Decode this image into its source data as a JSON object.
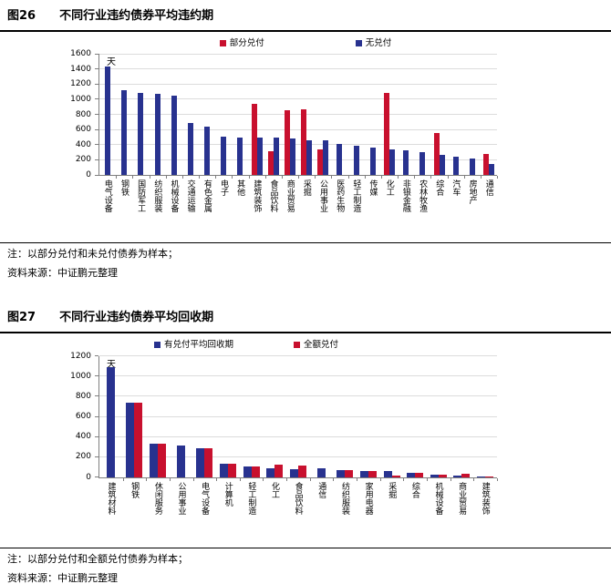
{
  "colors": {
    "series_blue": "#28328F",
    "series_red": "#C8102E",
    "gridline": "#DCDCDC",
    "axis": "#7F7F7F",
    "rule": "#000000"
  },
  "figures": [
    {
      "fig_label": "图26",
      "title": "不同行业违约债券平均违约期",
      "note": "注：以部分兑付和未兑付债券为样本；",
      "source": "资料来源：中证鹏元整理"
    },
    {
      "fig_label": "图27",
      "title": "不同行业违约债券平均回收期",
      "note": "注：以部分兑付和全额兑付债券为样本；",
      "source": "资料来源：中证鹏元整理"
    }
  ],
  "chart_data": [
    {
      "type": "bar",
      "title": "不同行业违约债券平均违约期",
      "unit_label": "天",
      "ylim": [
        0,
        1600
      ],
      "ytick_step": 200,
      "grid": true,
      "legend_position": "top",
      "categories": [
        "电气设备",
        "钢铁",
        "国防军工",
        "纺织服装",
        "机械设备",
        "交通运输",
        "有色金属",
        "电子",
        "其他",
        "建筑装饰",
        "食品饮料",
        "商业贸易",
        "采掘",
        "公用事业",
        "医药生物",
        "轻工制造",
        "传媒",
        "化工",
        "非银金融",
        "农林牧渔",
        "综合",
        "汽车",
        "房地产",
        "通信"
      ],
      "series": [
        {
          "name": "部分兑付",
          "color": "#C8102E",
          "values": [
            null,
            null,
            null,
            null,
            null,
            null,
            null,
            null,
            null,
            940,
            310,
            860,
            870,
            340,
            null,
            null,
            null,
            1090,
            null,
            null,
            560,
            null,
            null,
            280
          ]
        },
        {
          "name": "无兑付",
          "color": "#28328F",
          "values": [
            1430,
            1120,
            1090,
            1075,
            1050,
            690,
            635,
            505,
            495,
            500,
            495,
            480,
            455,
            460,
            410,
            390,
            360,
            340,
            330,
            300,
            260,
            240,
            220,
            140
          ]
        }
      ]
    },
    {
      "type": "bar",
      "title": "不同行业违约债券平均回收期",
      "unit_label": "天",
      "ylim": [
        0,
        1200
      ],
      "ytick_step": 200,
      "grid": true,
      "legend_position": "top",
      "categories": [
        "建筑材料",
        "钢铁",
        "休闲服务",
        "公用事业",
        "电气设备",
        "计算机",
        "轻工制造",
        "化工",
        "食品饮料",
        "通信",
        "纺织服装",
        "家用电器",
        "采掘",
        "综合",
        "机械设备",
        "商业贸易",
        "建筑装饰"
      ],
      "series": [
        {
          "name": "有兑付平均回收期",
          "color": "#28328F",
          "values": [
            1090,
            735,
            330,
            310,
            285,
            135,
            105,
            90,
            80,
            90,
            70,
            60,
            55,
            40,
            25,
            10,
            8
          ]
        },
        {
          "name": "全额兑付",
          "color": "#C8102E",
          "values": [
            null,
            735,
            330,
            null,
            285,
            130,
            100,
            125,
            115,
            null,
            70,
            60,
            15,
            45,
            25,
            28,
            8
          ]
        }
      ]
    }
  ]
}
